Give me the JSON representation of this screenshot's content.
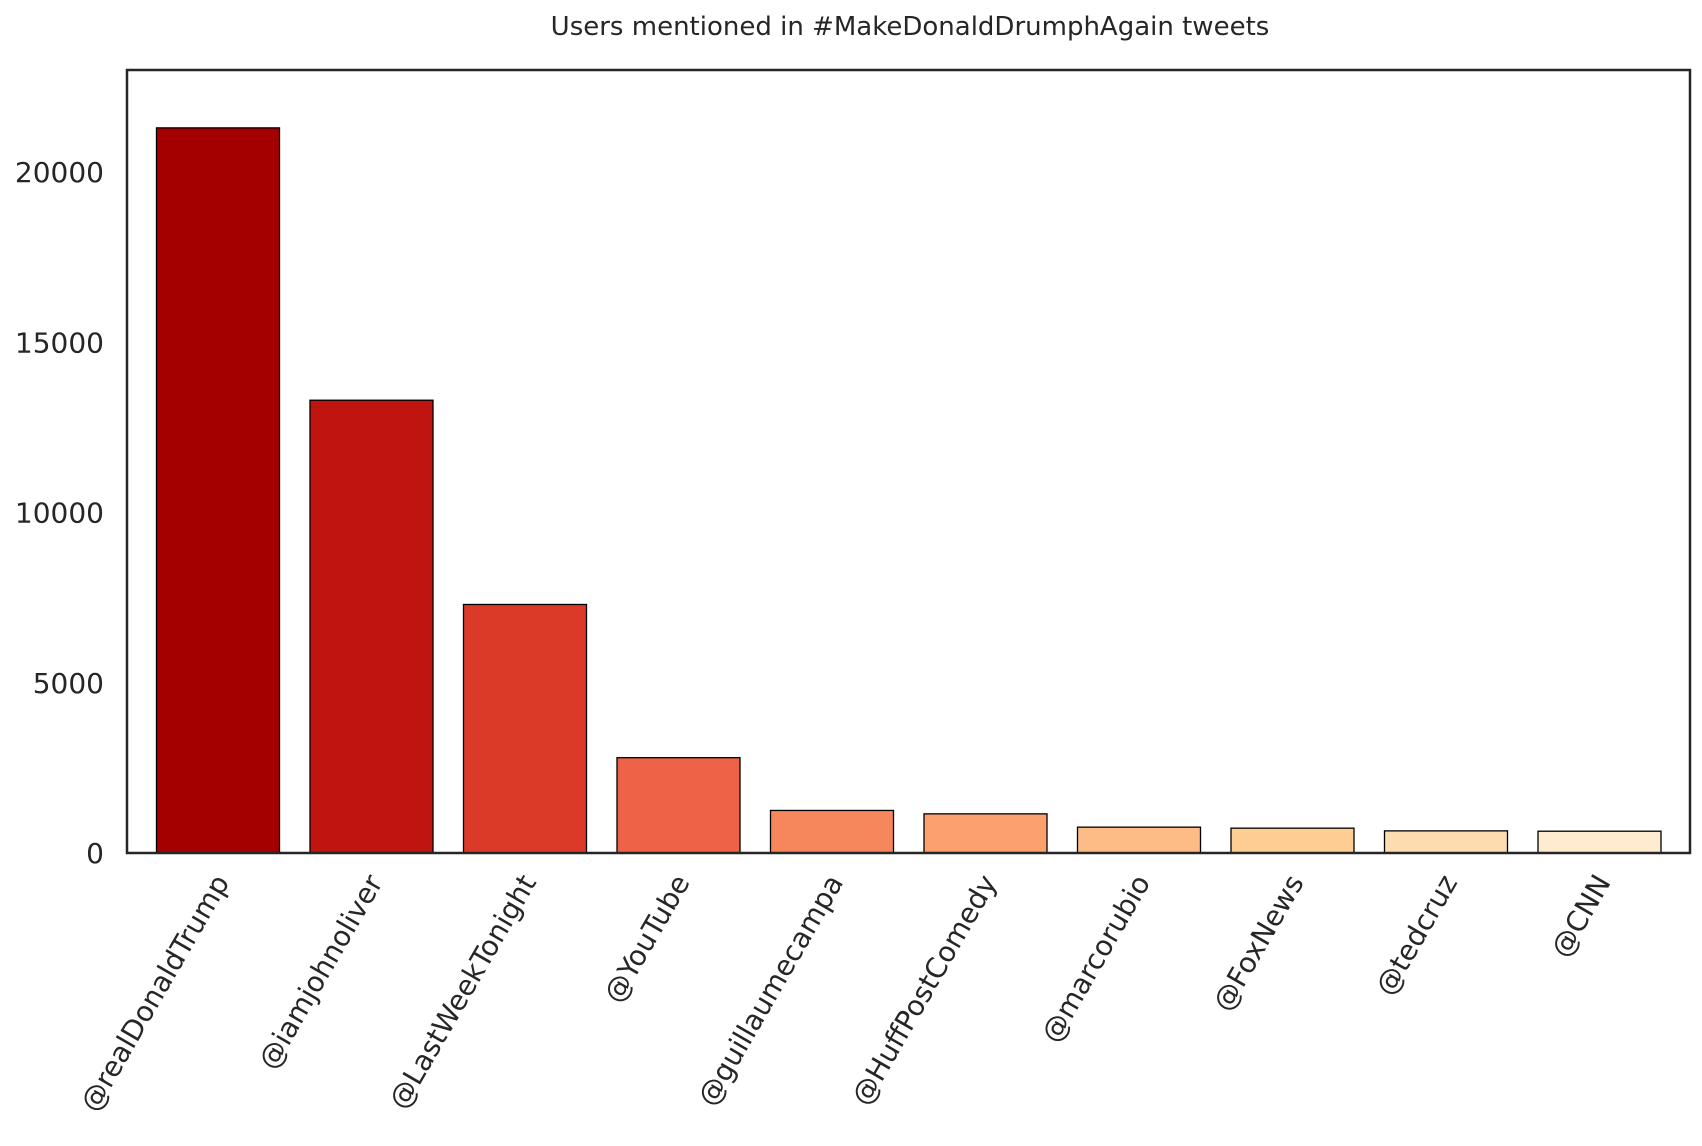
{
  "chart_data": {
    "type": "bar",
    "title": "Users mentioned in #MakeDonaldDrumphAgain tweets",
    "xlabel": "",
    "ylabel": "",
    "categories": [
      "@realDonaldTrump",
      "@iamjohnoliver",
      "@LastWeekTonight",
      "@YouTube",
      "@guillaumecampa",
      "@HuffPostComedy",
      "@marcorubio",
      "@FoxNews",
      "@tedcruz",
      "@CNN"
    ],
    "values": [
      21300,
      13300,
      7300,
      2800,
      1250,
      1150,
      760,
      730,
      650,
      640
    ],
    "colors": [
      "#a50000",
      "#c0150f",
      "#dc3a28",
      "#ee6347",
      "#f6865c",
      "#fca06d",
      "#fdbb86",
      "#fdcd94",
      "#fddcb0",
      "#feebd0"
    ],
    "ylim": [
      0,
      23000
    ],
    "yticks": [
      0,
      5000,
      10000,
      15000,
      20000
    ],
    "grid": false,
    "legend": false
  }
}
